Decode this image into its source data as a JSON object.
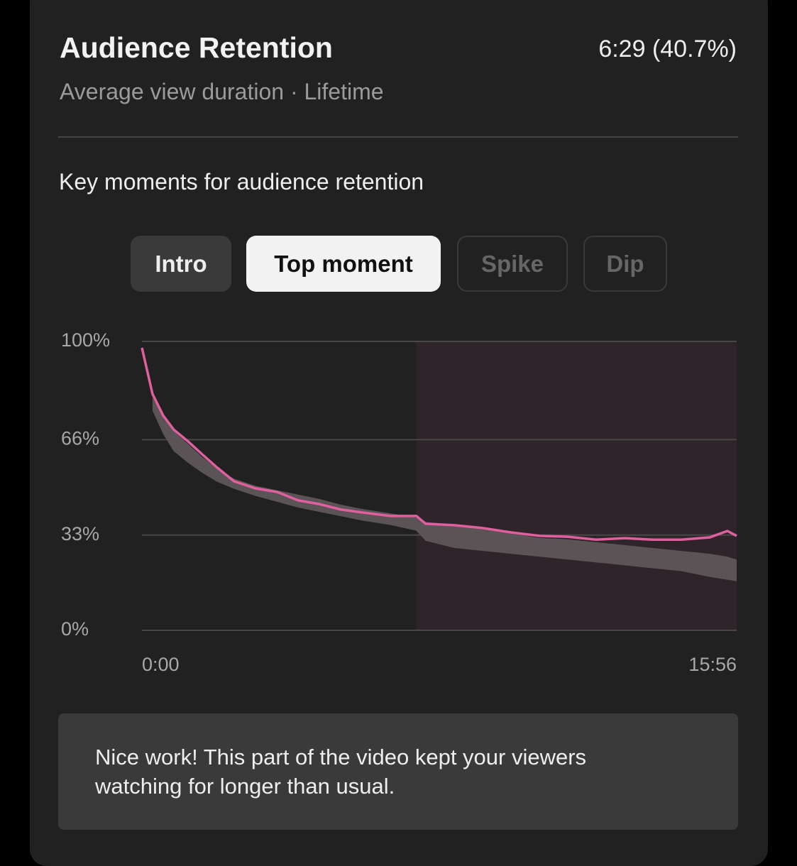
{
  "header": {
    "title": "Audience Retention",
    "subtitle": "Average view duration · Lifetime",
    "metric": "6:29 (40.7%)"
  },
  "section_title": "Key moments for audience retention",
  "tabs": [
    "Intro",
    "Top moment",
    "Spike",
    "Dip"
  ],
  "chart_data": {
    "type": "line",
    "xlim": [
      0,
      956
    ],
    "xticks": [
      {
        "value": 0,
        "label": "0:00"
      },
      {
        "value": 956,
        "label": "15:56"
      }
    ],
    "ylim": [
      0,
      100
    ],
    "yticks": [
      {
        "value": 0,
        "label": "0%"
      },
      {
        "value": 33,
        "label": "33%"
      },
      {
        "value": 66,
        "label": "66%"
      },
      {
        "value": 100,
        "label": "100%"
      }
    ],
    "grid": true,
    "highlight": {
      "range": [
        441,
        956
      ],
      "color": "#2f2429"
    },
    "band": {
      "color": "#5a5457",
      "x": [
        17,
        34,
        51,
        74,
        97,
        120,
        148,
        183,
        217,
        251,
        285,
        320,
        354,
        399,
        441,
        456,
        502,
        548,
        593,
        639,
        684,
        730,
        776,
        821,
        867,
        913,
        941,
        956
      ],
      "upper": [
        80.6,
        74.0,
        69.0,
        64.5,
        60.0,
        56.0,
        52.5,
        50.0,
        48.5,
        47.0,
        45.5,
        43.5,
        42.0,
        40.5,
        39.0,
        37.5,
        36.5,
        35.0,
        33.5,
        32.0,
        31.5,
        30.5,
        29.5,
        28.5,
        27.5,
        26.5,
        25.5,
        24.5
      ],
      "lower": [
        76.0,
        68.0,
        62.0,
        58.0,
        54.5,
        51.5,
        49.0,
        46.5,
        44.5,
        42.5,
        41.0,
        39.5,
        38.0,
        36.5,
        34.5,
        31.0,
        28.5,
        27.5,
        26.5,
        25.5,
        24.5,
        23.5,
        22.5,
        21.5,
        20.5,
        18.5,
        17.5,
        17.0
      ]
    },
    "series": [
      {
        "color": "#e0609f",
        "x": [
          0,
          17,
          34,
          51,
          74,
          97,
          120,
          148,
          183,
          217,
          251,
          285,
          320,
          354,
          399,
          441,
          456,
          502,
          548,
          593,
          639,
          684,
          730,
          776,
          821,
          867,
          913,
          941,
          956
        ],
        "values": [
          97.8,
          81.8,
          74.4,
          69.5,
          65.4,
          60.9,
          56.5,
          51.6,
          49.1,
          47.9,
          45.0,
          43.7,
          41.8,
          40.8,
          39.6,
          39.6,
          36.9,
          36.4,
          35.4,
          33.9,
          32.7,
          32.4,
          31.4,
          31.9,
          31.4,
          31.4,
          32.2,
          34.4,
          32.7
        ]
      }
    ]
  },
  "note": {
    "lines": [
      "Nice work! This part of the video kept your viewers",
      "watching for longer than usual."
    ]
  }
}
